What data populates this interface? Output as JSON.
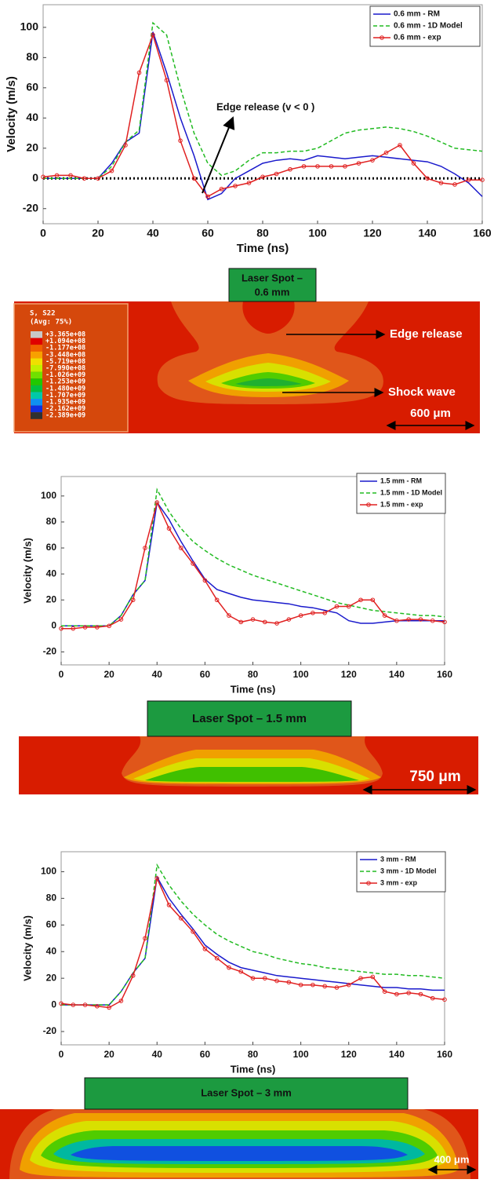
{
  "chart_data": [
    {
      "type": "line",
      "xlabel": "Time (ns)",
      "ylabel": "Velocity (m/s)",
      "x": [
        0,
        5,
        10,
        15,
        20,
        25,
        30,
        35,
        40,
        45,
        50,
        55,
        60,
        65,
        70,
        75,
        80,
        85,
        90,
        95,
        100,
        105,
        110,
        115,
        120,
        125,
        130,
        135,
        140,
        145,
        150,
        155,
        160
      ],
      "xlim": [
        0,
        160
      ],
      "xticks": [
        0,
        20,
        40,
        60,
        80,
        100,
        120,
        140,
        160
      ],
      "ylim": [
        -30,
        115
      ],
      "yticks": [
        -20,
        0,
        20,
        40,
        60,
        80,
        100
      ],
      "hline": 0,
      "annotation": "Edge release (v < 0 )",
      "legend": "upper right",
      "series": [
        {
          "name": "0.6 mm - RM",
          "color": "#1a1acc",
          "line_style": "solid",
          "values": [
            0,
            0,
            0,
            0,
            0,
            10,
            24,
            30,
            97,
            70,
            40,
            15,
            -14,
            -10,
            0,
            5,
            10,
            12,
            13,
            12,
            15,
            14,
            13,
            14,
            15,
            14,
            13,
            12,
            11,
            8,
            3,
            -3,
            -12
          ]
        },
        {
          "name": "0.6 mm - 1D Model",
          "color": "#22bb22",
          "line_style": "dashed",
          "values": [
            0,
            0,
            0,
            0,
            0,
            8,
            24,
            32,
            103,
            95,
            60,
            30,
            10,
            2,
            5,
            12,
            17,
            17,
            18,
            18,
            20,
            25,
            30,
            32,
            33,
            34,
            33,
            31,
            28,
            24,
            20,
            19,
            18
          ]
        },
        {
          "name": "0.6 mm - exp",
          "color": "#e02020",
          "line_style": "solid",
          "marker": "o",
          "values": [
            1,
            2,
            2,
            0,
            0,
            5,
            22,
            70,
            95,
            65,
            25,
            0,
            -12,
            -7,
            -5,
            -3,
            1,
            3,
            6,
            8,
            8,
            8,
            8,
            10,
            12,
            17,
            22,
            10,
            0,
            -3,
            -4,
            -1,
            -1
          ]
        }
      ]
    },
    {
      "type": "line",
      "xlabel": "Time (ns)",
      "ylabel": "Velocity (m/s)",
      "x": [
        0,
        5,
        10,
        15,
        20,
        25,
        30,
        35,
        40,
        45,
        50,
        55,
        60,
        65,
        70,
        75,
        80,
        85,
        90,
        95,
        100,
        105,
        110,
        115,
        120,
        125,
        130,
        135,
        140,
        145,
        150,
        155,
        160
      ],
      "xlim": [
        0,
        160
      ],
      "xticks": [
        0,
        20,
        40,
        60,
        80,
        100,
        120,
        140,
        160
      ],
      "ylim": [
        -30,
        115
      ],
      "yticks": [
        -20,
        0,
        20,
        40,
        60,
        80,
        100
      ],
      "legend": "upper right",
      "series": [
        {
          "name": "1.5 mm - RM",
          "color": "#1a1acc",
          "line_style": "solid",
          "values": [
            0,
            0,
            0,
            0,
            0,
            8,
            24,
            35,
            95,
            82,
            65,
            50,
            36,
            28,
            25,
            22,
            20,
            19,
            18,
            17,
            15,
            14,
            12,
            10,
            4,
            2,
            2,
            3,
            4,
            4,
            4,
            4,
            4
          ]
        },
        {
          "name": "1.5 mm - 1D Model",
          "color": "#22bb22",
          "line_style": "dashed",
          "values": [
            0,
            0,
            0,
            0,
            0,
            8,
            24,
            35,
            105,
            88,
            75,
            65,
            58,
            52,
            47,
            43,
            39,
            36,
            33,
            30,
            27,
            24,
            21,
            18,
            16,
            14,
            12,
            11,
            10,
            9,
            8,
            8,
            7
          ]
        },
        {
          "name": "1.5 mm - exp",
          "color": "#e02020",
          "line_style": "solid",
          "marker": "o",
          "values": [
            -2,
            -2,
            -1,
            -1,
            0,
            5,
            20,
            60,
            95,
            75,
            60,
            48,
            35,
            20,
            8,
            3,
            5,
            3,
            2,
            5,
            8,
            10,
            10,
            15,
            15,
            20,
            20,
            8,
            4,
            5,
            5,
            4,
            3
          ]
        }
      ]
    },
    {
      "type": "line",
      "xlabel": "Time (ns)",
      "ylabel": "Velocity (m/s)",
      "x": [
        0,
        5,
        10,
        15,
        20,
        25,
        30,
        35,
        40,
        45,
        50,
        55,
        60,
        65,
        70,
        75,
        80,
        85,
        90,
        95,
        100,
        105,
        110,
        115,
        120,
        125,
        130,
        135,
        140,
        145,
        150,
        155,
        160
      ],
      "xlim": [
        0,
        160
      ],
      "xticks": [
        0,
        20,
        40,
        60,
        80,
        100,
        120,
        140,
        160
      ],
      "ylim": [
        -30,
        115
      ],
      "yticks": [
        -20,
        0,
        20,
        40,
        60,
        80,
        100
      ],
      "legend": "upper right",
      "series": [
        {
          "name": "3 mm - RM",
          "color": "#1a1acc",
          "line_style": "solid",
          "values": [
            0,
            0,
            0,
            0,
            0,
            10,
            24,
            35,
            96,
            80,
            68,
            57,
            45,
            38,
            32,
            28,
            26,
            24,
            22,
            21,
            20,
            19,
            18,
            17,
            16,
            15,
            14,
            13,
            13,
            12,
            12,
            11,
            11
          ]
        },
        {
          "name": "3 mm - 1D Model",
          "color": "#22bb22",
          "line_style": "dashed",
          "values": [
            0,
            0,
            0,
            0,
            0,
            10,
            24,
            35,
            105,
            90,
            78,
            68,
            60,
            53,
            48,
            44,
            40,
            38,
            35,
            33,
            31,
            30,
            28,
            27,
            26,
            25,
            24,
            23,
            23,
            22,
            22,
            21,
            20
          ]
        },
        {
          "name": "3 mm - exp",
          "color": "#e02020",
          "line_style": "solid",
          "marker": "o",
          "values": [
            1,
            0,
            0,
            -1,
            -2,
            3,
            22,
            50,
            95,
            75,
            65,
            55,
            42,
            35,
            28,
            25,
            20,
            20,
            18,
            17,
            15,
            15,
            14,
            13,
            15,
            20,
            21,
            10,
            8,
            9,
            8,
            5,
            4
          ]
        }
      ]
    }
  ],
  "panels": [
    {
      "label": [
        "Laser Spot –",
        "0.6 mm"
      ],
      "annotations": [
        "Edge release",
        "Shock wave"
      ],
      "scale": "600 μm",
      "legend": {
        "title": "S, S22",
        "subtitle": "(Avg: 75%)",
        "labels": [
          "+3.365e+08",
          "+1.094e+08",
          "-1.177e+08",
          "-3.448e+08",
          "-5.719e+08",
          "-7.990e+08",
          "-1.026e+09",
          "-1.253e+09",
          "-1.480e+09",
          "-1.707e+09",
          "-1.935e+09",
          "-2.162e+09",
          "-2.389e+09"
        ],
        "colors": [
          "#c8c8c8",
          "#e00000",
          "#f06000",
          "#f8a000",
          "#f0e000",
          "#c0f000",
          "#70e000",
          "#20c800",
          "#00c040",
          "#00c8a8",
          "#1090f0",
          "#1030e0",
          "#303030"
        ]
      }
    },
    {
      "label": [
        "Laser Spot – 1.5 mm"
      ],
      "scale": "750 μm"
    },
    {
      "label": [
        "Laser Spot – 3 mm"
      ],
      "scale": "400 μm"
    }
  ]
}
